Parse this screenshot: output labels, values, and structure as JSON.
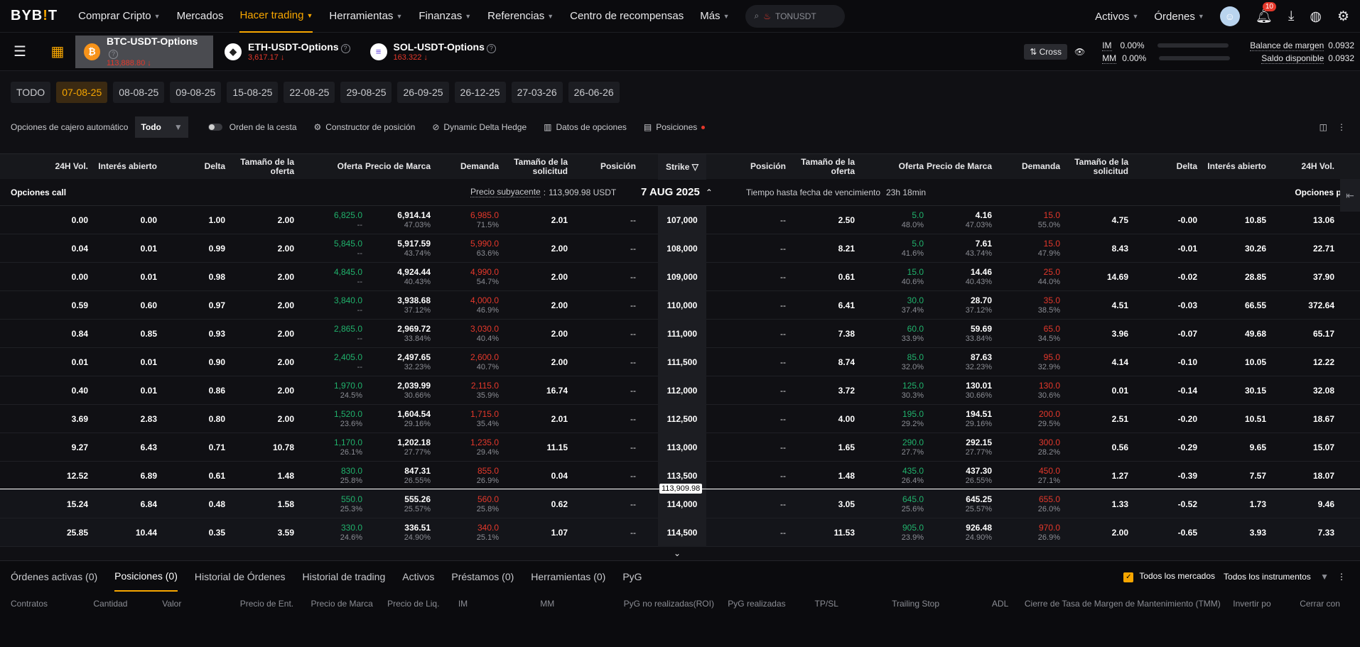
{
  "nav": {
    "logo_left": "BYB",
    "logo_mid": "!",
    "logo_right": "T",
    "items": [
      "Comprar Cripto",
      "Mercados",
      "Hacer trading",
      "Herramientas",
      "Finanzas",
      "Referencias",
      "Centro de recompensas",
      "Más"
    ],
    "search_text": "TONUSDT",
    "assets": "Activos",
    "orders": "Órdenes",
    "notif_count": "10"
  },
  "symbols": [
    {
      "name": "BTC-USDT-Options",
      "price": "113,888.80",
      "coin": "₿",
      "color": "#f7931a"
    },
    {
      "name": "ETH-USDT-Options",
      "price": "3,617.17",
      "coin": "◆",
      "color": "#ffffff"
    },
    {
      "name": "SOL-USDT-Options",
      "price": "163.322",
      "coin": "≡",
      "color": "#ffffff"
    }
  ],
  "account": {
    "cross": "Cross",
    "im_label": "IM",
    "im_val": "0.00%",
    "mm_label": "MM",
    "mm_val": "0.00%",
    "margin_label": "Balance de margen",
    "margin_val": "0.0932",
    "avail_label": "Saldo disponible",
    "avail_val": "0.0932"
  },
  "dates": [
    "TODO",
    "07-08-25",
    "08-08-25",
    "09-08-25",
    "15-08-25",
    "22-08-25",
    "29-08-25",
    "26-09-25",
    "26-12-25",
    "27-03-26",
    "26-06-26"
  ],
  "tools": {
    "atm_label": "Opciones de cajero automático",
    "atm_value": "Todo",
    "basket": "Orden de la cesta",
    "builder": "Constructor de posición",
    "delta_hedge": "Dynamic Delta Hedge",
    "option_data": "Datos de opciones",
    "positions": "Posiciones"
  },
  "headers": {
    "vol": "24H Vol.",
    "oi": "Interés abierto",
    "delta": "Delta",
    "bid_size": "Tamaño de la oferta",
    "bid": "Oferta",
    "mark": "Precio de Marca",
    "ask": "Demanda",
    "ask_size": "Tamaño de la solicitud",
    "pos": "Posición",
    "strike": "Strike"
  },
  "expiry": {
    "calls": "Opciones call",
    "underlying_label": "Precio subyacente",
    "underlying_val": "113,909.98 USDT",
    "date": "7 AUG 2025",
    "ttl_label": "Tiempo hasta fecha de vencimiento",
    "ttl_val": "23h 18min",
    "puts": "Opciones put"
  },
  "underlying_marker": "113,909.98",
  "rows": [
    {
      "c": [
        "0.00",
        "0.00",
        "1.00",
        "2.00",
        "6,825.0",
        "--",
        "6,914.14",
        "47.03%",
        "6,985.0",
        "71.5%",
        "2.01",
        "--"
      ],
      "strike": "107,000",
      "p": [
        "--",
        "2.50",
        "5.0",
        "48.0%",
        "4.16",
        "47.03%",
        "15.0",
        "55.0%",
        "4.75",
        "-0.00",
        "10.85",
        "13.06"
      ]
    },
    {
      "c": [
        "0.04",
        "0.01",
        "0.99",
        "2.00",
        "5,845.0",
        "--",
        "5,917.59",
        "43.74%",
        "5,990.0",
        "63.6%",
        "2.00",
        "--"
      ],
      "strike": "108,000",
      "p": [
        "--",
        "8.21",
        "5.0",
        "41.6%",
        "7.61",
        "43.74%",
        "15.0",
        "47.9%",
        "8.43",
        "-0.01",
        "30.26",
        "22.71"
      ]
    },
    {
      "c": [
        "0.00",
        "0.01",
        "0.98",
        "2.00",
        "4,845.0",
        "--",
        "4,924.44",
        "40.43%",
        "4,990.0",
        "54.7%",
        "2.00",
        "--"
      ],
      "strike": "109,000",
      "p": [
        "--",
        "0.61",
        "15.0",
        "40.6%",
        "14.46",
        "40.43%",
        "25.0",
        "44.0%",
        "14.69",
        "-0.02",
        "28.85",
        "37.90"
      ]
    },
    {
      "c": [
        "0.59",
        "0.60",
        "0.97",
        "2.00",
        "3,840.0",
        "--",
        "3,938.68",
        "37.12%",
        "4,000.0",
        "46.9%",
        "2.00",
        "--"
      ],
      "strike": "110,000",
      "p": [
        "--",
        "6.41",
        "30.0",
        "37.4%",
        "28.70",
        "37.12%",
        "35.0",
        "38.5%",
        "4.51",
        "-0.03",
        "66.55",
        "372.64"
      ]
    },
    {
      "c": [
        "0.84",
        "0.85",
        "0.93",
        "2.00",
        "2,865.0",
        "--",
        "2,969.72",
        "33.84%",
        "3,030.0",
        "40.4%",
        "2.00",
        "--"
      ],
      "strike": "111,000",
      "p": [
        "--",
        "7.38",
        "60.0",
        "33.9%",
        "59.69",
        "33.84%",
        "65.0",
        "34.5%",
        "3.96",
        "-0.07",
        "49.68",
        "65.17"
      ]
    },
    {
      "c": [
        "0.01",
        "0.01",
        "0.90",
        "2.00",
        "2,405.0",
        "--",
        "2,497.65",
        "32.23%",
        "2,600.0",
        "40.7%",
        "2.00",
        "--"
      ],
      "strike": "111,500",
      "p": [
        "--",
        "8.74",
        "85.0",
        "32.0%",
        "87.63",
        "32.23%",
        "95.0",
        "32.9%",
        "4.14",
        "-0.10",
        "10.05",
        "12.22"
      ]
    },
    {
      "c": [
        "0.40",
        "0.01",
        "0.86",
        "2.00",
        "1,970.0",
        "24.5%",
        "2,039.99",
        "30.66%",
        "2,115.0",
        "35.9%",
        "16.74",
        "--"
      ],
      "strike": "112,000",
      "p": [
        "--",
        "3.72",
        "125.0",
        "30.3%",
        "130.01",
        "30.66%",
        "130.0",
        "30.6%",
        "0.01",
        "-0.14",
        "30.15",
        "32.08"
      ]
    },
    {
      "c": [
        "3.69",
        "2.83",
        "0.80",
        "2.00",
        "1,520.0",
        "23.6%",
        "1,604.54",
        "29.16%",
        "1,715.0",
        "35.4%",
        "2.01",
        "--"
      ],
      "strike": "112,500",
      "p": [
        "--",
        "4.00",
        "195.0",
        "29.2%",
        "194.51",
        "29.16%",
        "200.0",
        "29.5%",
        "2.51",
        "-0.20",
        "10.51",
        "18.67"
      ]
    },
    {
      "c": [
        "9.27",
        "6.43",
        "0.71",
        "10.78",
        "1,170.0",
        "26.1%",
        "1,202.18",
        "27.77%",
        "1,235.0",
        "29.4%",
        "11.15",
        "--"
      ],
      "strike": "113,000",
      "p": [
        "--",
        "1.65",
        "290.0",
        "27.7%",
        "292.15",
        "27.77%",
        "300.0",
        "28.2%",
        "0.56",
        "-0.29",
        "9.65",
        "15.07"
      ]
    },
    {
      "c": [
        "12.52",
        "6.89",
        "0.61",
        "1.48",
        "830.0",
        "25.8%",
        "847.31",
        "26.55%",
        "855.0",
        "26.9%",
        "0.04",
        "--"
      ],
      "strike": "113,500",
      "p": [
        "--",
        "1.48",
        "435.0",
        "26.4%",
        "437.30",
        "26.55%",
        "450.0",
        "27.1%",
        "1.27",
        "-0.39",
        "7.57",
        "18.07"
      ]
    },
    {
      "c": [
        "15.24",
        "6.84",
        "0.48",
        "1.58",
        "550.0",
        "25.3%",
        "555.26",
        "25.57%",
        "560.0",
        "25.8%",
        "0.62",
        "--"
      ],
      "strike": "114,000",
      "p": [
        "--",
        "3.05",
        "645.0",
        "25.6%",
        "645.25",
        "25.57%",
        "655.0",
        "26.0%",
        "1.33",
        "-0.52",
        "1.73",
        "9.46"
      ]
    },
    {
      "c": [
        "25.85",
        "10.44",
        "0.35",
        "3.59",
        "330.0",
        "24.6%",
        "336.51",
        "24.90%",
        "340.0",
        "25.1%",
        "1.07",
        "--"
      ],
      "strike": "114,500",
      "p": [
        "--",
        "11.53",
        "905.0",
        "23.9%",
        "926.48",
        "24.90%",
        "970.0",
        "26.9%",
        "2.00",
        "-0.65",
        "3.93",
        "7.33"
      ]
    }
  ],
  "bottom": {
    "tabs": [
      "Órdenes activas (0)",
      "Posiciones (0)",
      "Historial de Órdenes",
      "Historial de trading",
      "Activos",
      "Préstamos (0)",
      "Herramientas (0)",
      "PyG"
    ],
    "all_markets": "Todos los mercados",
    "all_instruments": "Todos los instrumentos",
    "cols": [
      "Contratos",
      "Cantidad",
      "Valor",
      "Precio de Ent.",
      "Precio de Marca",
      "Precio de Liq.",
      "IM",
      "MM",
      "PyG no realizadas(ROI)",
      "PyG realizadas",
      "TP/SL",
      "Trailing Stop",
      "ADL",
      "Cierre de Tasa de Margen de Mantenimiento (TMM)",
      "Invertir po",
      "Cerrar con"
    ]
  },
  "colors": {
    "accent": "#f7a600",
    "bid": "#20b26c",
    "ask": "#e5382b",
    "bg": "#101014"
  }
}
